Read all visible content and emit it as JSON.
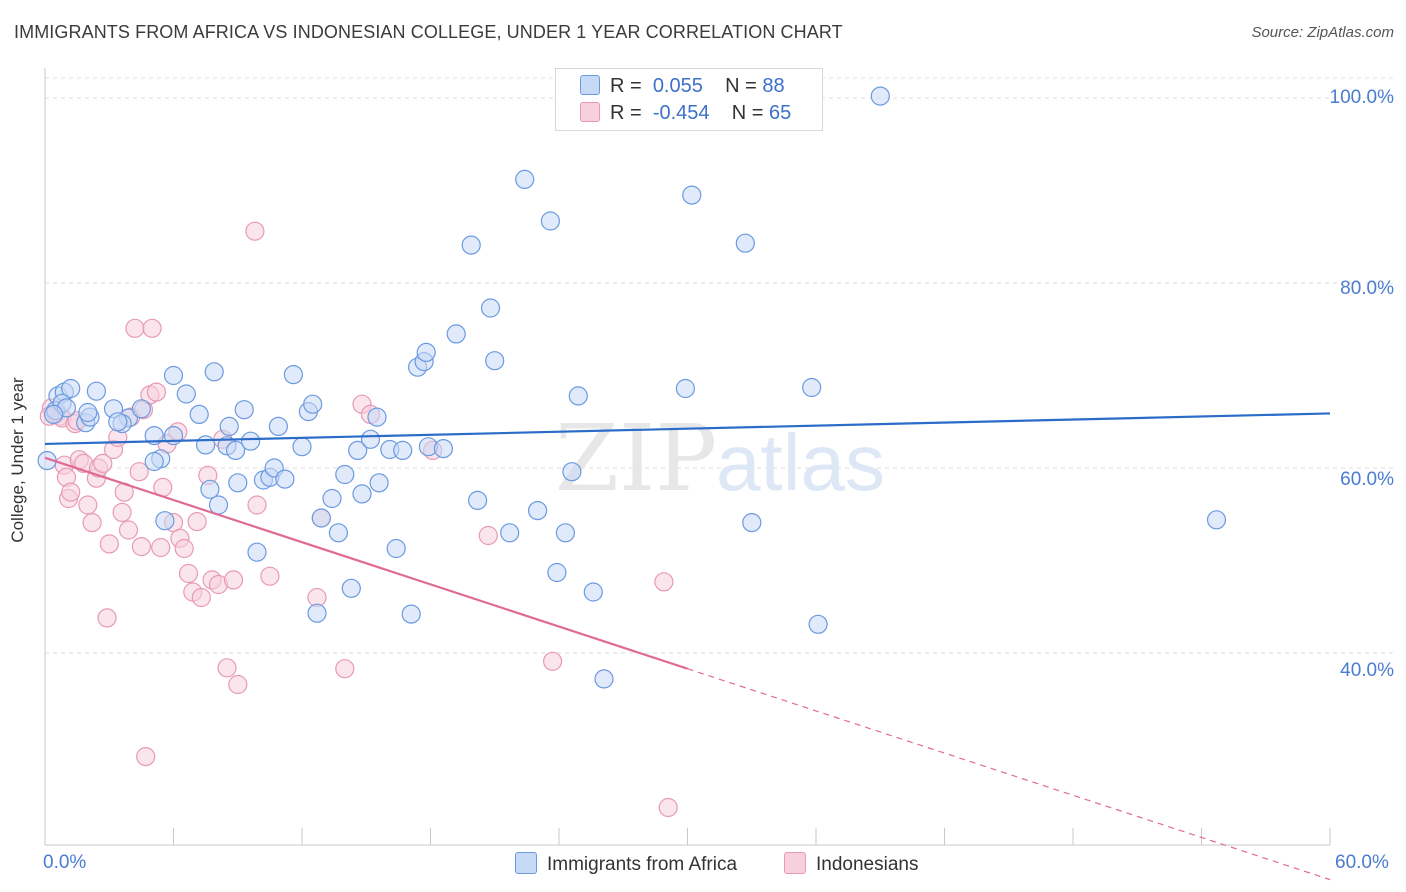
{
  "title": "IMMIGRANTS FROM AFRICA VS INDONESIAN COLLEGE, UNDER 1 YEAR CORRELATION CHART",
  "source": "Source: ZipAtlas.com",
  "watermark": {
    "zip": "ZIP",
    "atlas": "atlas"
  },
  "stats": {
    "blue": {
      "r_label": "R =",
      "r": "0.055",
      "n_label": "N =",
      "n": "88"
    },
    "pink": {
      "r_label": "R =",
      "r": "-0.454",
      "n_label": "N =",
      "n": "65"
    }
  },
  "legend": {
    "blue": "Immigrants from Africa",
    "pink": "Indonesians"
  },
  "colors": {
    "blue": "#6b9ae0",
    "blue_fill": "#c6d9f5",
    "blue_line": "#2b6cc9",
    "pink": "#e79ab6",
    "pink_fill": "#f7cfdd",
    "pink_line": "#e06a96",
    "tick_text": "#4a7cd0"
  },
  "chart_data": {
    "type": "scatter",
    "title": "IMMIGRANTS FROM AFRICA VS INDONESIAN COLLEGE, UNDER 1 YEAR CORRELATION CHART",
    "xlabel": "",
    "ylabel": "College, Under 1 year",
    "xlim": [
      0,
      60
    ],
    "ylim": [
      20,
      104
    ],
    "x_tick_labels": [
      "0.0%",
      "60.0%"
    ],
    "y_ticks": [
      40,
      60,
      80,
      100
    ],
    "y_tick_labels": [
      "40.0%",
      "60.0%",
      "80.0%",
      "100.0%"
    ],
    "grid": true,
    "legend_position": "bottom",
    "series": [
      {
        "name": "Immigrants from Africa",
        "color": "#6b9ae0",
        "points": [
          [
            0.1,
            60.8
          ],
          [
            0.6,
            67.8
          ],
          [
            0.9,
            68.2
          ],
          [
            1.2,
            68.6
          ],
          [
            0.5,
            66.2
          ],
          [
            0.8,
            67.0
          ],
          [
            2.4,
            68.3
          ],
          [
            1.9,
            64.9
          ],
          [
            2.1,
            65.5
          ],
          [
            3.2,
            66.4
          ],
          [
            3.9,
            65.4
          ],
          [
            3.6,
            64.8
          ],
          [
            4.5,
            66.4
          ],
          [
            3.4,
            65.0
          ],
          [
            5.1,
            63.5
          ],
          [
            5.4,
            61.0
          ],
          [
            5.1,
            60.7
          ],
          [
            6.0,
            63.5
          ],
          [
            5.6,
            54.3
          ],
          [
            6.0,
            70.0
          ],
          [
            6.6,
            68.0
          ],
          [
            7.2,
            65.8
          ],
          [
            7.5,
            62.5
          ],
          [
            7.7,
            57.7
          ],
          [
            7.9,
            70.4
          ],
          [
            8.1,
            56.0
          ],
          [
            8.5,
            62.4
          ],
          [
            8.6,
            64.5
          ],
          [
            8.9,
            61.9
          ],
          [
            9.0,
            58.4
          ],
          [
            9.3,
            66.3
          ],
          [
            9.6,
            62.9
          ],
          [
            9.9,
            50.9
          ],
          [
            10.2,
            58.7
          ],
          [
            10.5,
            59.0
          ],
          [
            10.7,
            60.0
          ],
          [
            10.9,
            64.5
          ],
          [
            11.2,
            58.8
          ],
          [
            11.6,
            70.1
          ],
          [
            12.0,
            62.3
          ],
          [
            12.3,
            66.1
          ],
          [
            12.5,
            66.9
          ],
          [
            12.7,
            44.3
          ],
          [
            12.9,
            54.6
          ],
          [
            13.4,
            56.7
          ],
          [
            13.7,
            53.0
          ],
          [
            14.0,
            59.3
          ],
          [
            14.3,
            47.0
          ],
          [
            14.6,
            61.9
          ],
          [
            14.8,
            57.2
          ],
          [
            15.2,
            63.1
          ],
          [
            15.5,
            65.5
          ],
          [
            15.6,
            58.4
          ],
          [
            16.1,
            62.0
          ],
          [
            16.4,
            51.3
          ],
          [
            16.7,
            61.9
          ],
          [
            17.1,
            44.2
          ],
          [
            17.4,
            70.9
          ],
          [
            17.7,
            71.5
          ],
          [
            17.8,
            72.5
          ],
          [
            17.9,
            62.3
          ],
          [
            18.6,
            62.1
          ],
          [
            19.2,
            74.5
          ],
          [
            19.9,
            84.1
          ],
          [
            20.2,
            56.5
          ],
          [
            20.8,
            77.3
          ],
          [
            21.0,
            71.6
          ],
          [
            21.7,
            53.0
          ],
          [
            22.4,
            91.2
          ],
          [
            23.0,
            55.4
          ],
          [
            23.6,
            86.7
          ],
          [
            23.9,
            48.7
          ],
          [
            24.3,
            53.0
          ],
          [
            24.6,
            59.6
          ],
          [
            24.9,
            67.8
          ],
          [
            25.6,
            46.6
          ],
          [
            26.1,
            37.2
          ],
          [
            29.9,
            68.6
          ],
          [
            30.2,
            89.5
          ],
          [
            32.7,
            84.3
          ],
          [
            33.0,
            54.1
          ],
          [
            35.8,
            68.7
          ],
          [
            36.1,
            43.1
          ],
          [
            39.0,
            100.2
          ],
          [
            54.7,
            54.4
          ],
          [
            1.0,
            66.5
          ],
          [
            2.0,
            66.0
          ],
          [
            0.4,
            65.8
          ]
        ],
        "trend": {
          "x": [
            0,
            60
          ],
          "y": [
            62.6,
            65.9
          ]
        }
      },
      {
        "name": "Indonesians",
        "color": "#e79ab6",
        "points": [
          [
            0.3,
            66.5
          ],
          [
            0.5,
            65.9
          ],
          [
            0.7,
            65.6
          ],
          [
            0.8,
            65.4
          ],
          [
            0.9,
            60.3
          ],
          [
            1.0,
            59.0
          ],
          [
            1.1,
            56.7
          ],
          [
            1.2,
            57.4
          ],
          [
            1.4,
            64.8
          ],
          [
            1.6,
            60.9
          ],
          [
            1.8,
            60.5
          ],
          [
            2.0,
            56.0
          ],
          [
            2.2,
            54.1
          ],
          [
            2.4,
            58.9
          ],
          [
            2.5,
            60.0
          ],
          [
            2.7,
            60.5
          ],
          [
            2.9,
            43.8
          ],
          [
            3.0,
            51.8
          ],
          [
            3.2,
            62.0
          ],
          [
            3.4,
            63.3
          ],
          [
            3.6,
            55.2
          ],
          [
            3.7,
            57.4
          ],
          [
            3.9,
            53.3
          ],
          [
            4.0,
            65.5
          ],
          [
            4.2,
            75.1
          ],
          [
            4.4,
            59.6
          ],
          [
            4.5,
            51.5
          ],
          [
            4.6,
            66.3
          ],
          [
            4.7,
            28.8
          ],
          [
            4.9,
            67.9
          ],
          [
            5.0,
            75.1
          ],
          [
            5.2,
            68.2
          ],
          [
            5.4,
            51.4
          ],
          [
            5.5,
            57.9
          ],
          [
            5.7,
            62.6
          ],
          [
            6.0,
            54.1
          ],
          [
            6.2,
            63.9
          ],
          [
            6.3,
            52.4
          ],
          [
            6.5,
            51.3
          ],
          [
            6.7,
            48.6
          ],
          [
            6.9,
            46.6
          ],
          [
            7.1,
            54.2
          ],
          [
            7.3,
            46.0
          ],
          [
            7.6,
            59.2
          ],
          [
            7.8,
            47.9
          ],
          [
            8.1,
            47.4
          ],
          [
            8.3,
            63.1
          ],
          [
            8.5,
            38.4
          ],
          [
            8.8,
            47.9
          ],
          [
            9.0,
            36.6
          ],
          [
            9.8,
            85.6
          ],
          [
            9.9,
            56.0
          ],
          [
            10.5,
            48.3
          ],
          [
            12.7,
            46.0
          ],
          [
            12.9,
            54.6
          ],
          [
            14.0,
            38.3
          ],
          [
            14.8,
            66.9
          ],
          [
            15.2,
            65.8
          ],
          [
            18.1,
            61.9
          ],
          [
            20.7,
            52.7
          ],
          [
            23.7,
            39.1
          ],
          [
            28.9,
            47.7
          ],
          [
            29.1,
            23.3
          ],
          [
            0.2,
            65.6
          ],
          [
            1.5,
            65.1
          ]
        ],
        "trend": {
          "x": [
            0,
            30
          ],
          "y": [
            61.1,
            38.3
          ]
        },
        "trend_extension": {
          "x": [
            30,
            60
          ],
          "y": [
            38.3,
            15.5
          ]
        }
      }
    ]
  }
}
